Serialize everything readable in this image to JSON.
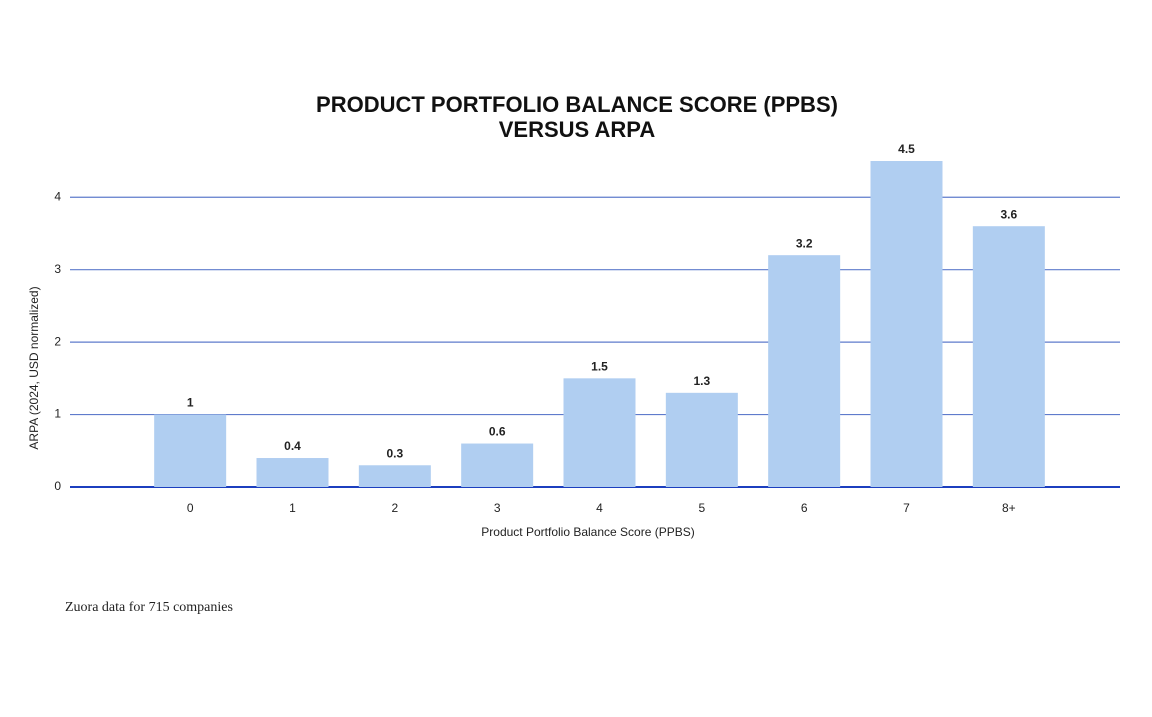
{
  "chart_data": {
    "type": "bar",
    "title": [
      "PRODUCT PORTFOLIO BALANCE SCORE (PPBS)",
      "VERSUS ARPA"
    ],
    "x_label": "Product Portfolio Balance Score (PPBS)",
    "y_label": "ARPA (2024, USD normalized)",
    "categories": [
      "0",
      "1",
      "2",
      "3",
      "4",
      "5",
      "6",
      "7",
      "8+"
    ],
    "values": [
      1,
      0.4,
      0.3,
      0.6,
      1.5,
      1.3,
      3.2,
      4.5,
      3.6
    ],
    "color": "#b0cef1",
    "ylim": [
      0,
      4.5
    ],
    "yticks": [
      0,
      1,
      2,
      3,
      4
    ],
    "grid": true,
    "footnote": "Zuora data for 715 companies"
  }
}
